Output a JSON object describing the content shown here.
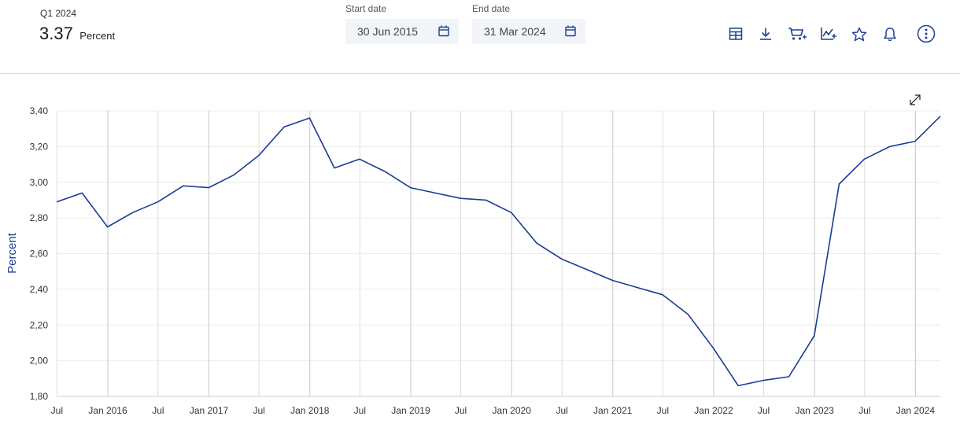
{
  "header": {
    "period": "Q1 2024",
    "value": "3.37",
    "unit": "Percent"
  },
  "date_range": {
    "start_label": "Start date",
    "start_value": "30 Jun 2015",
    "end_label": "End date",
    "end_value": "31 Mar 2024"
  },
  "toolbar": {
    "icons": [
      "table-icon",
      "download-icon",
      "cart-icon",
      "add-series-icon",
      "star-icon",
      "bell-icon",
      "more-icon"
    ]
  },
  "colors": {
    "accent": "#1f3f8f",
    "line": "#1a3a96",
    "grid": "#d3d3d3"
  },
  "chart_data": {
    "type": "line",
    "ylabel": "Percent",
    "ylim": [
      1.8,
      3.4
    ],
    "yticks": [
      "3,40",
      "3,20",
      "3,00",
      "2,80",
      "2,60",
      "2,40",
      "2,20",
      "2,00",
      "1,80"
    ],
    "ytick_values": [
      3.4,
      3.2,
      3.0,
      2.8,
      2.6,
      2.4,
      2.2,
      2.0,
      1.8
    ],
    "xticks": [
      "Jul",
      "Jan 2016",
      "Jul",
      "Jan 2017",
      "Jul",
      "Jan 2018",
      "Jul",
      "Jan 2019",
      "Jul",
      "Jan 2020",
      "Jul",
      "Jan 2021",
      "Jul",
      "Jan 2022",
      "Jul",
      "Jan 2023",
      "Jul",
      "Jan 2024"
    ],
    "xtick_dates": [
      "2015-07-01",
      "2016-01-01",
      "2016-07-01",
      "2017-01-01",
      "2017-07-01",
      "2018-01-01",
      "2018-07-01",
      "2019-01-01",
      "2019-07-01",
      "2020-01-01",
      "2020-07-01",
      "2021-01-01",
      "2021-07-01",
      "2022-01-01",
      "2022-07-01",
      "2023-01-01",
      "2023-07-01",
      "2024-01-01"
    ],
    "grid": true,
    "series": [
      {
        "x": [
          "2015-06-30",
          "2015-09-30",
          "2015-12-31",
          "2016-03-31",
          "2016-06-30",
          "2016-09-30",
          "2016-12-31",
          "2017-03-31",
          "2017-06-30",
          "2017-09-30",
          "2017-12-31",
          "2018-03-31",
          "2018-06-30",
          "2018-09-30",
          "2018-12-31",
          "2019-03-31",
          "2019-06-30",
          "2019-09-30",
          "2019-12-31",
          "2020-03-31",
          "2020-06-30",
          "2020-09-30",
          "2020-12-31",
          "2021-03-31",
          "2021-06-30",
          "2021-09-30",
          "2021-12-31",
          "2022-03-31",
          "2022-06-30",
          "2022-09-30",
          "2022-12-31",
          "2023-03-31",
          "2023-06-30",
          "2023-09-30",
          "2023-12-31",
          "2024-03-31"
        ],
        "values": [
          2.89,
          2.94,
          2.75,
          2.83,
          2.89,
          2.98,
          2.97,
          3.04,
          3.15,
          3.31,
          3.36,
          3.08,
          3.13,
          3.06,
          2.97,
          2.94,
          2.91,
          2.9,
          2.83,
          2.66,
          2.57,
          2.51,
          2.45,
          2.41,
          2.37,
          2.26,
          2.07,
          1.86,
          1.89,
          1.91,
          2.14,
          2.99,
          3.13,
          3.2,
          3.23,
          3.37
        ]
      }
    ]
  }
}
